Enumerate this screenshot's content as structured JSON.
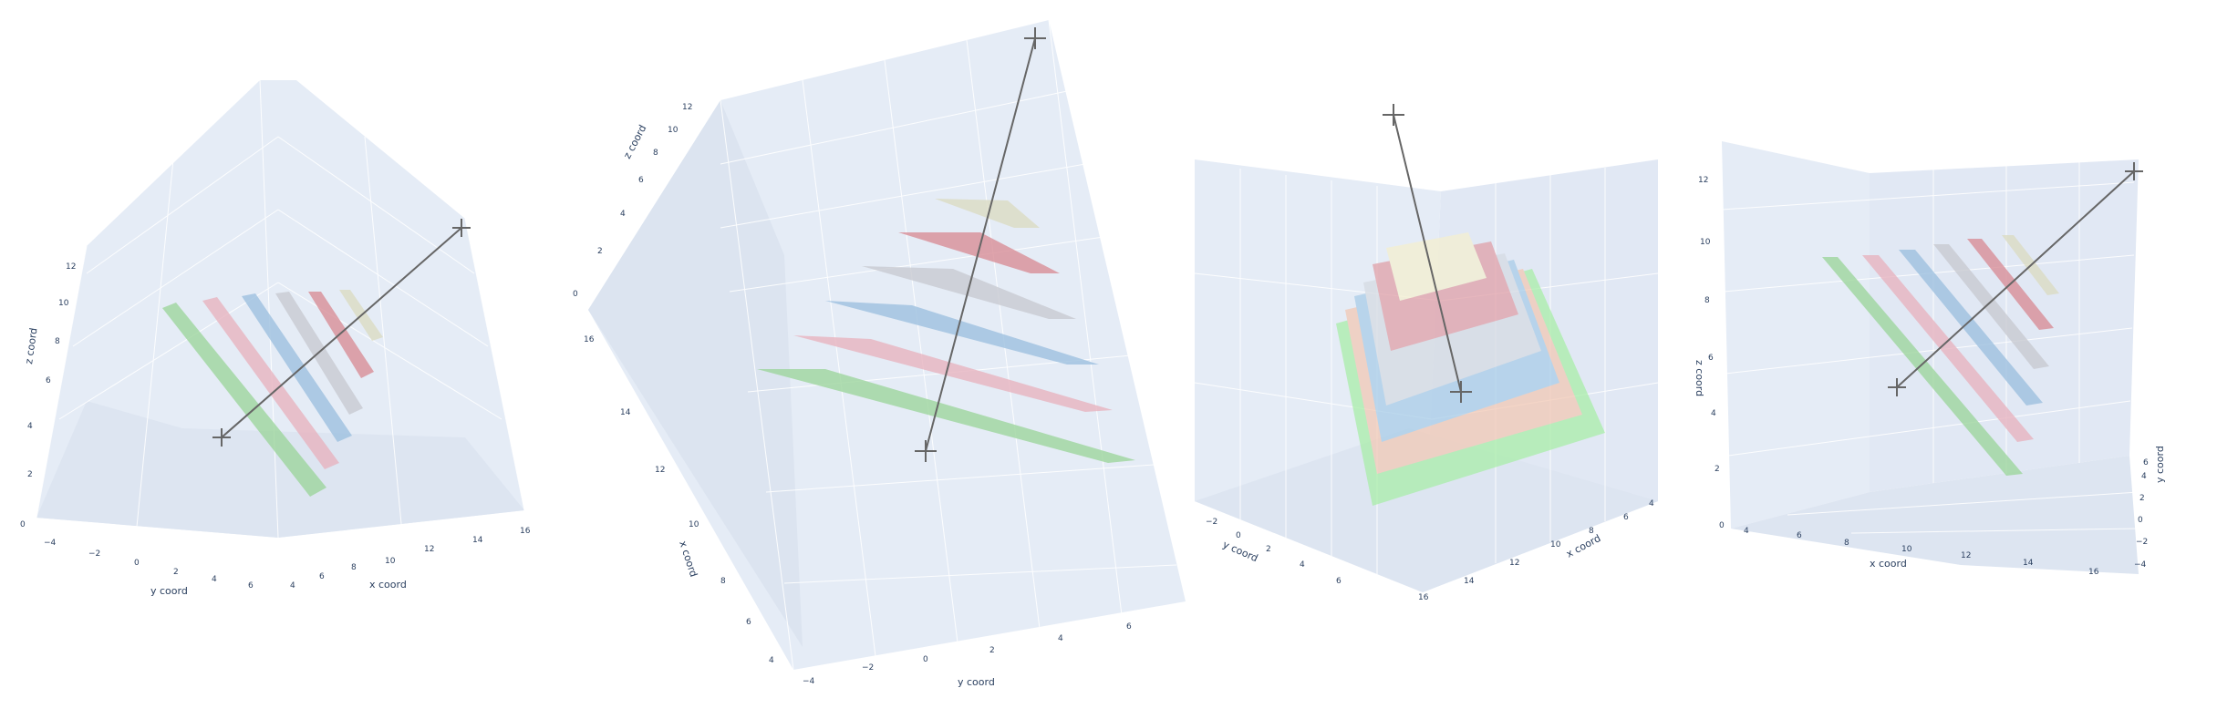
{
  "chart_data": [
    {
      "type": "surface",
      "view": "panel-1",
      "axes": {
        "x": {
          "title": "x coord",
          "ticks": [
            "4",
            "6",
            "8",
            "10",
            "12",
            "14",
            "16"
          ]
        },
        "y": {
          "title": "y coord",
          "ticks": [
            "−4",
            "−2",
            "0",
            "2",
            "4",
            "6"
          ]
        },
        "z": {
          "title": "z coord",
          "ticks": [
            "0",
            "2",
            "4",
            "6",
            "8",
            "10",
            "12"
          ]
        }
      },
      "line": {
        "start": [
          6,
          0,
          0
        ],
        "end": [
          16,
          5,
          12
        ]
      },
      "planes": [
        {
          "color": "#9ed69e",
          "z": 2
        },
        {
          "color": "#e8b4c0",
          "z": 4
        },
        {
          "color": "#9ec1e0",
          "z": 6
        },
        {
          "color": "#c9cbd2",
          "z": 8
        },
        {
          "color": "#d98f98",
          "z": 10
        },
        {
          "color": "#dcdcc4",
          "z": 12
        }
      ]
    },
    {
      "type": "surface",
      "view": "panel-2",
      "axes": {
        "x": {
          "title": "x coord",
          "ticks": [
            "4",
            "6",
            "8",
            "10",
            "12",
            "14",
            "16"
          ]
        },
        "y": {
          "title": "y coord",
          "ticks": [
            "−4",
            "−2",
            "0",
            "2",
            "4",
            "6"
          ]
        },
        "z": {
          "title": "z coord",
          "ticks": [
            "0",
            "2",
            "4",
            "6",
            "8",
            "10",
            "12"
          ]
        }
      }
    },
    {
      "type": "surface",
      "view": "panel-3",
      "axes": {
        "x": {
          "title": "x coord",
          "ticks": [
            "16",
            "14",
            "12",
            "10",
            "8",
            "6",
            "4"
          ]
        },
        "y": {
          "title": "y coord",
          "ticks": [
            "−2",
            "0",
            "2",
            "4",
            "6"
          ]
        }
      }
    },
    {
      "type": "surface",
      "view": "panel-4",
      "axes": {
        "x": {
          "title": "x coord",
          "ticks": [
            "4",
            "6",
            "8",
            "10",
            "12",
            "14",
            "16"
          ]
        },
        "y": {
          "title": "y coord",
          "ticks": [
            "−4",
            "−2",
            "0",
            "2",
            "4",
            "6"
          ]
        },
        "z": {
          "title": "z coord",
          "ticks": [
            "0",
            "2",
            "4",
            "6",
            "8",
            "10",
            "12"
          ]
        }
      }
    }
  ],
  "colors": {
    "pane": "#e5ecf6",
    "grid": "#ffffff",
    "line": "#666666",
    "text": "#2a3f5f"
  }
}
